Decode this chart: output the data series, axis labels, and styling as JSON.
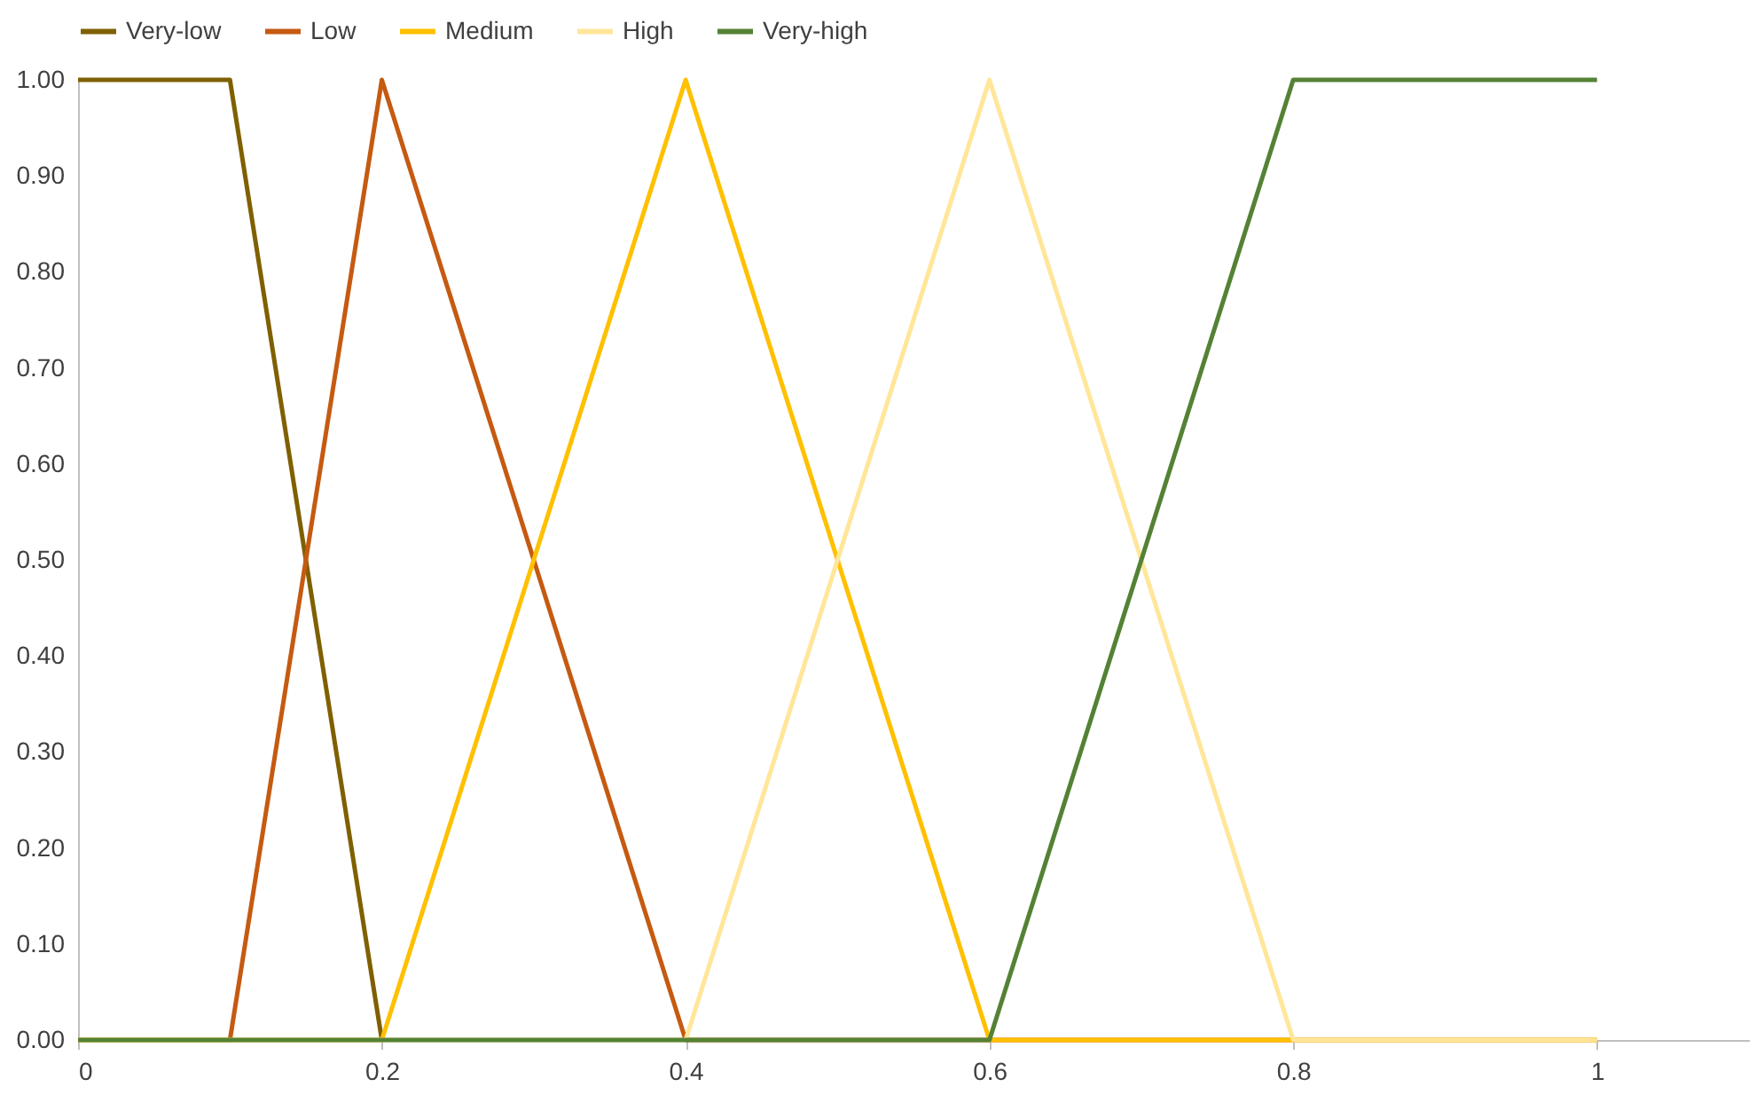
{
  "chart_data": {
    "type": "line",
    "legend": "top",
    "grid": false,
    "marker": "none",
    "line_style": "solid",
    "xlim": [
      0,
      1.1
    ],
    "xticks": [
      0,
      0.2,
      0.4,
      0.6,
      0.8,
      1
    ],
    "ylim": [
      0,
      1
    ],
    "yticks": [
      {
        "value": 0,
        "label": "0.00"
      },
      {
        "value": 0.1,
        "label": "0.10"
      },
      {
        "value": 0.2,
        "label": "0.20"
      },
      {
        "value": 0.3,
        "label": "0.30"
      },
      {
        "value": 0.4,
        "label": "0.40"
      },
      {
        "value": 0.5,
        "label": "0.50"
      },
      {
        "value": 0.6,
        "label": "0.60"
      },
      {
        "value": 0.7,
        "label": "0.70"
      },
      {
        "value": 0.8,
        "label": "0.80"
      },
      {
        "value": 0.9,
        "label": "0.90"
      },
      {
        "value": 1,
        "label": "1.00"
      }
    ],
    "series": [
      {
        "name": "Very-low",
        "color": "#7f6000",
        "x": [
          0,
          0.1,
          0.2
        ],
        "values": [
          1,
          1,
          0
        ]
      },
      {
        "name": "Low",
        "color": "#c55a11",
        "x": [
          0,
          0.1,
          0.2,
          0.4,
          1
        ],
        "values": [
          0,
          0,
          1,
          0,
          0
        ]
      },
      {
        "name": "Medium",
        "color": "#ffc000",
        "x": [
          0,
          0.2,
          0.4,
          0.6,
          1
        ],
        "values": [
          0,
          0,
          1,
          0,
          0
        ]
      },
      {
        "name": "High",
        "color": "#ffe699",
        "x": [
          0,
          0.4,
          0.6,
          0.8,
          1
        ],
        "values": [
          0,
          0,
          1,
          0,
          0
        ]
      },
      {
        "name": "Very-high",
        "color": "#548235",
        "x": [
          0,
          0.6,
          0.8,
          1
        ],
        "values": [
          0,
          0,
          1,
          1
        ]
      }
    ]
  }
}
